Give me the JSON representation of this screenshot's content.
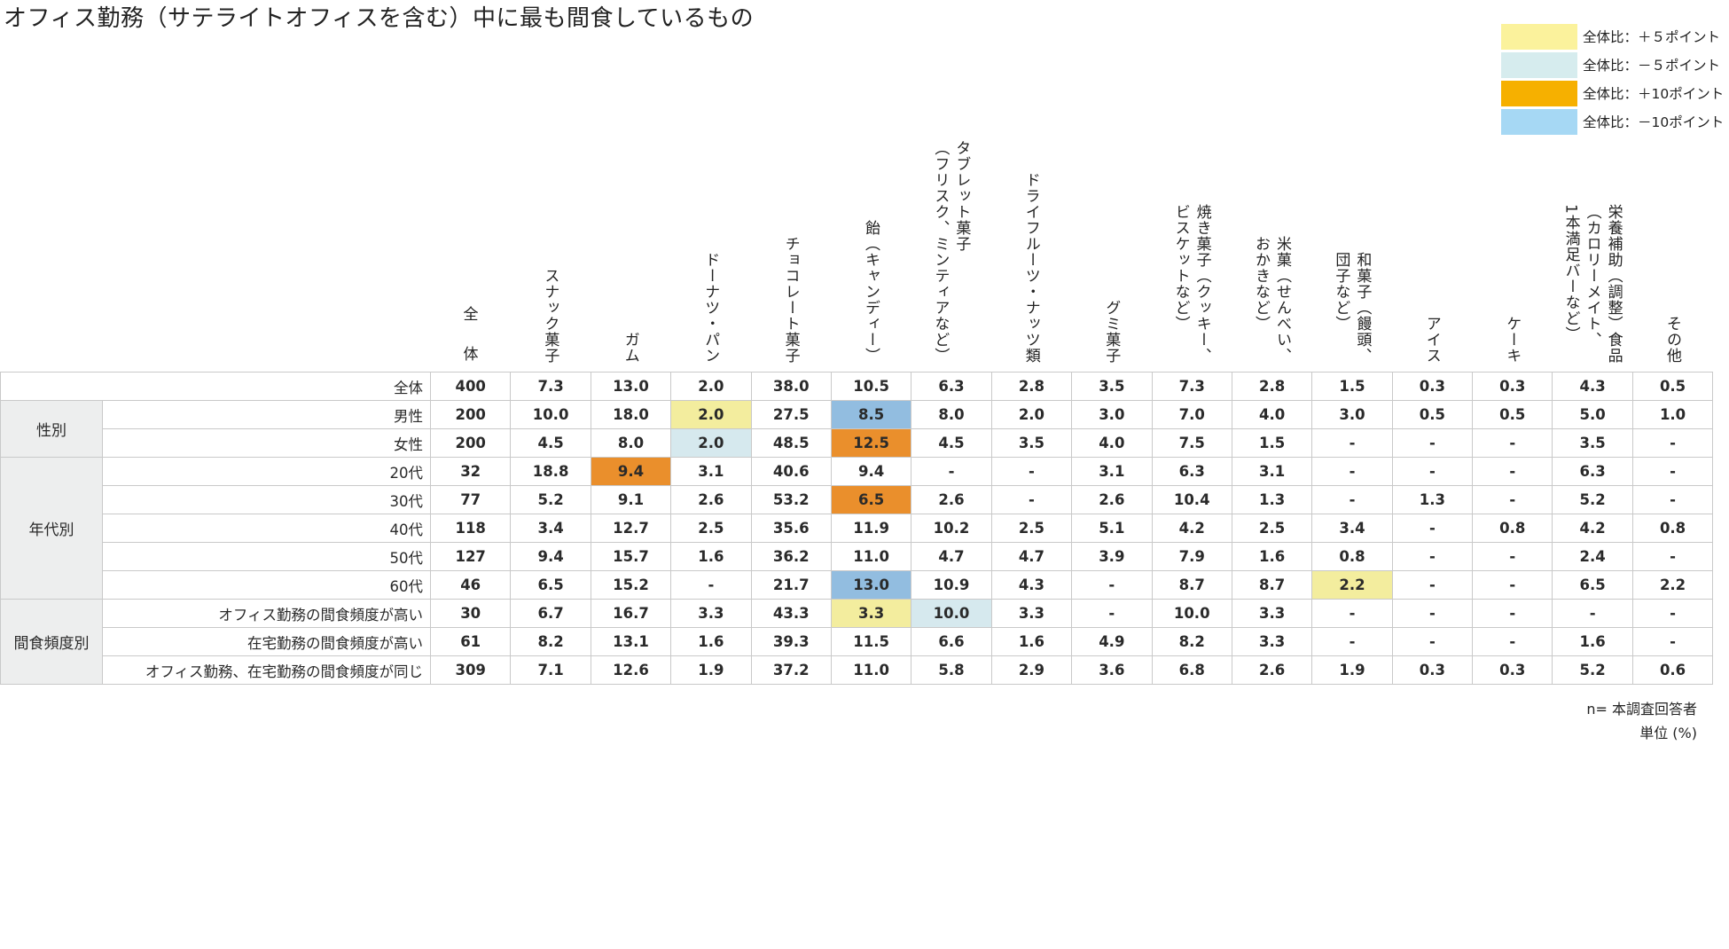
{
  "title": "オフィス勤務（サテライトオフィスを含む）中に最も間食しているもの",
  "legend": [
    {
      "label": "全体比：＋５ポイント",
      "color": "#fbf29c"
    },
    {
      "label": "全体比：－５ポイント",
      "color": "#d6ecee"
    },
    {
      "label": "全体比：＋10ポイント",
      "color": "#f6b000"
    },
    {
      "label": "全体比：－10ポイント",
      "color": "#a6d8f4"
    }
  ],
  "cell_colors": {
    "plus5": "#f3ed9e",
    "minus5": "#d6e9ee",
    "plus10": "#ea8f2c",
    "minus10": "#92bde0"
  },
  "notes": {
    "n": "n= 本調査回答者",
    "unit": "単位 (%)"
  },
  "chart_data": {
    "type": "table",
    "title": "オフィス勤務（サテライトオフィスを含む）中に最も間食しているもの",
    "columns": [
      "全\n\n体",
      "スナック菓子",
      "ガム",
      "ドーナツ・パン",
      "チョコレート菓子",
      "飴（キャンディー）",
      "タブレット菓子\n（フリスク、ミンティアなど）",
      "ドライフルーツ・ナッツ類",
      "グミ菓子",
      "焼き菓子（クッキー、\nビスケットなど）",
      "米菓（せんべい、\nおかきなど）",
      "和菓子（饅頭、\n団子など）",
      "アイス",
      "ケーキ",
      "栄養補助（調整）食品\n（カロリーメイト、\n1本満足バーなど）",
      "その他"
    ],
    "rows": [
      {
        "group": "",
        "label": "全体",
        "values": [
          "400",
          "7.3",
          "13.0",
          "2.0",
          "38.0",
          "10.5",
          "6.3",
          "2.8",
          "3.5",
          "7.3",
          "2.8",
          "1.5",
          "0.3",
          "0.3",
          "4.3",
          "0.5"
        ],
        "highlights": {}
      },
      {
        "group": "性別",
        "label": "男性",
        "values": [
          "200",
          "10.0",
          "18.0",
          "2.0",
          "27.5",
          "8.5",
          "8.0",
          "2.0",
          "3.0",
          "7.0",
          "4.0",
          "3.0",
          "0.5",
          "0.5",
          "5.0",
          "1.0"
        ],
        "highlights": {
          "2": "plus5",
          "4": "minus10"
        }
      },
      {
        "group": "",
        "label": "女性",
        "values": [
          "200",
          "4.5",
          "8.0",
          "2.0",
          "48.5",
          "12.5",
          "4.5",
          "3.5",
          "4.0",
          "7.5",
          "1.5",
          "-",
          "-",
          "-",
          "3.5",
          "-"
        ],
        "highlights": {
          "2": "minus5",
          "4": "plus10"
        }
      },
      {
        "group": "年代別",
        "label": "20代",
        "values": [
          "32",
          "18.8",
          "9.4",
          "3.1",
          "40.6",
          "9.4",
          "-",
          "-",
          "3.1",
          "6.3",
          "3.1",
          "-",
          "-",
          "-",
          "6.3",
          "-"
        ],
        "highlights": {
          "1": "plus10"
        }
      },
      {
        "group": "",
        "label": "30代",
        "values": [
          "77",
          "5.2",
          "9.1",
          "2.6",
          "53.2",
          "6.5",
          "2.6",
          "-",
          "2.6",
          "10.4",
          "1.3",
          "-",
          "1.3",
          "-",
          "5.2",
          "-"
        ],
        "highlights": {
          "4": "plus10"
        }
      },
      {
        "group": "",
        "label": "40代",
        "values": [
          "118",
          "3.4",
          "12.7",
          "2.5",
          "35.6",
          "11.9",
          "10.2",
          "2.5",
          "5.1",
          "4.2",
          "2.5",
          "3.4",
          "-",
          "0.8",
          "4.2",
          "0.8"
        ],
        "highlights": {}
      },
      {
        "group": "",
        "label": "50代",
        "values": [
          "127",
          "9.4",
          "15.7",
          "1.6",
          "36.2",
          "11.0",
          "4.7",
          "4.7",
          "3.9",
          "7.9",
          "1.6",
          "0.8",
          "-",
          "-",
          "2.4",
          "-"
        ],
        "highlights": {}
      },
      {
        "group": "",
        "label": "60代",
        "values": [
          "46",
          "6.5",
          "15.2",
          "-",
          "21.7",
          "13.0",
          "10.9",
          "4.3",
          "-",
          "8.7",
          "8.7",
          "2.2",
          "-",
          "-",
          "6.5",
          "2.2"
        ],
        "highlights": {
          "4": "minus10",
          "10": "plus5"
        }
      },
      {
        "group": "間食頻度別",
        "label": "オフィス勤務の間食頻度が高い",
        "values": [
          "30",
          "6.7",
          "16.7",
          "3.3",
          "43.3",
          "3.3",
          "10.0",
          "3.3",
          "-",
          "10.0",
          "3.3",
          "-",
          "-",
          "-",
          "-",
          "-"
        ],
        "highlights": {
          "4": "plus5",
          "5": "minus5"
        }
      },
      {
        "group": "",
        "label": "在宅勤務の間食頻度が高い",
        "values": [
          "61",
          "8.2",
          "13.1",
          "1.6",
          "39.3",
          "11.5",
          "6.6",
          "1.6",
          "4.9",
          "8.2",
          "3.3",
          "-",
          "-",
          "-",
          "1.6",
          "-"
        ],
        "highlights": {}
      },
      {
        "group": "",
        "label": "オフィス勤務、在宅勤務の間食頻度が同じ",
        "values": [
          "309",
          "7.1",
          "12.6",
          "1.9",
          "37.2",
          "11.0",
          "5.8",
          "2.9",
          "3.6",
          "6.8",
          "2.6",
          "1.9",
          "0.3",
          "0.3",
          "5.2",
          "0.6"
        ],
        "highlights": {}
      }
    ],
    "groups": [
      {
        "label": "性別",
        "rows": 2
      },
      {
        "label": "年代別",
        "rows": 5
      },
      {
        "label": "間食頻度別",
        "rows": 3
      }
    ],
    "unit": "%"
  }
}
